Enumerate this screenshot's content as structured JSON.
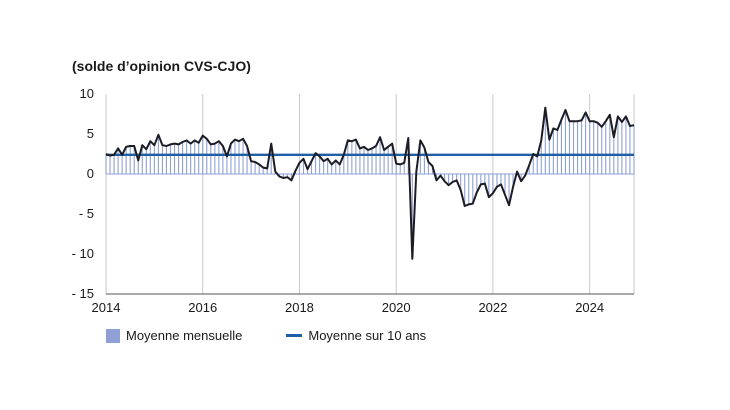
{
  "chart_data": {
    "type": "bar",
    "subtitle": "(solde d’opinion CVS-CJO)",
    "x_range": [
      2014.0,
      2024.917
    ],
    "ylim": [
      -15,
      10
    ],
    "y_ticks": [
      10,
      5,
      0,
      -5,
      -10,
      -15
    ],
    "y_tick_labels": [
      "10",
      "5",
      "0",
      "- 5",
      "- 10",
      "- 15"
    ],
    "x_ticks": [
      2014,
      2016,
      2018,
      2020,
      2022,
      2024
    ],
    "x_tick_labels": [
      "2014",
      "2016",
      "2018",
      "2020",
      "2022",
      "2024"
    ],
    "grid": "vertical",
    "legend_position": "bottom",
    "legend": [
      {
        "label": "Moyenne mensuelle",
        "type": "bar"
      },
      {
        "label": "Moyenne sur 10 ans",
        "type": "line"
      }
    ],
    "colors": {
      "bars": "#8fa0d6",
      "monthly_line": "#1c1c24",
      "average_line": "#1f5fa6"
    },
    "ten_year_average": 2.4,
    "start": "2014-01",
    "series": [
      {
        "name": "Moyenne mensuelle",
        "values": [
          2.5,
          2.3,
          2.4,
          3.2,
          2.4,
          3.4,
          3.5,
          3.5,
          1.7,
          3.6,
          3.1,
          4.1,
          3.6,
          4.9,
          3.6,
          3.5,
          3.7,
          3.8,
          3.7,
          4.0,
          4.2,
          3.8,
          4.2,
          3.9,
          4.8,
          4.4,
          3.7,
          3.8,
          4.1,
          3.5,
          2.2,
          3.8,
          4.3,
          4.1,
          4.4,
          3.5,
          1.6,
          1.5,
          1.2,
          0.8,
          0.7,
          3.8,
          0.3,
          -0.3,
          -0.5,
          -0.4,
          -0.8,
          0.4,
          1.4,
          1.9,
          0.6,
          1.6,
          2.6,
          2.2,
          1.6,
          1.9,
          1.2,
          1.7,
          1.2,
          2.4,
          4.2,
          4.1,
          4.3,
          3.2,
          3.4,
          3.0,
          3.2,
          3.5,
          4.6,
          3.0,
          3.4,
          3.8,
          1.3,
          1.2,
          1.4,
          4.5,
          -10.6,
          0.3,
          4.2,
          3.3,
          1.5,
          1.0,
          -0.8,
          -0.2,
          -0.9,
          -1.4,
          -1.0,
          -0.8,
          -2.0,
          -4.0,
          -3.8,
          -3.7,
          -2.3,
          -1.3,
          -1.2,
          -2.9,
          -2.4,
          -1.6,
          -1.3,
          -2.6,
          -3.9,
          -1.6,
          0.3,
          -0.9,
          -0.2,
          1.1,
          2.5,
          2.2,
          4.2,
          8.3,
          4.3,
          5.7,
          5.5,
          6.8,
          8.0,
          6.6,
          6.6,
          6.6,
          6.7,
          7.7,
          6.6,
          6.6,
          6.4,
          5.9,
          6.6,
          7.4,
          4.6,
          7.2,
          6.5,
          7.2,
          6.0,
          6.1
        ]
      }
    ]
  }
}
